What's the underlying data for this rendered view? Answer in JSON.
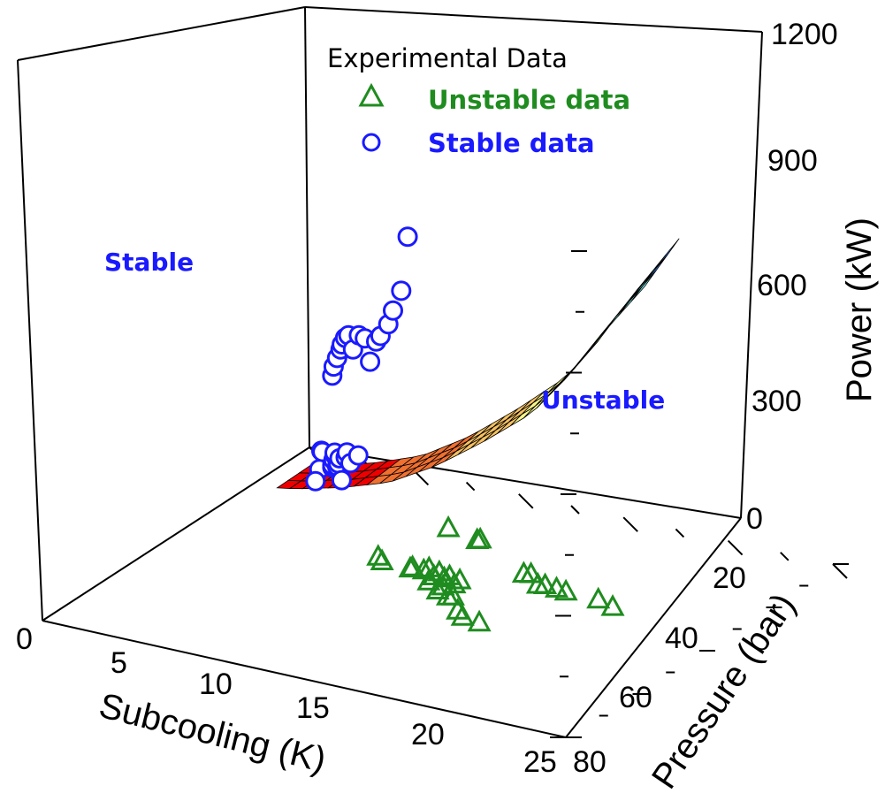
{
  "chart_data": {
    "type": "scatter",
    "title": "",
    "axes": {
      "x": {
        "label": "Subcooling (K)",
        "range": [
          0,
          25
        ],
        "ticks": [
          "0",
          "5",
          "10",
          "15",
          "20",
          "25"
        ]
      },
      "y": {
        "label": "Pressure (bar)",
        "range": [
          0,
          80
        ],
        "ticks": [
          "20",
          "40",
          "60",
          "80"
        ]
      },
      "z": {
        "label": "Power (kW)",
        "range": [
          0,
          1200
        ],
        "ticks": [
          "0",
          "300",
          "600",
          "900",
          "1200"
        ]
      }
    },
    "legend": {
      "title": "Experimental Data",
      "placement": "top-right",
      "entries": [
        {
          "label": "Unstable data",
          "marker": "triangle",
          "color": "#1f8c1f"
        },
        {
          "label": "Stable data",
          "marker": "circle",
          "color": "#1a1aff"
        }
      ]
    },
    "region_labels": {
      "stable": "Stable",
      "unstable": "Unstable"
    },
    "surface": {
      "description_type": "stability boundary surface",
      "colormap": [
        "#ee0000",
        "#f07030",
        "#f5c060",
        "#f7f58a",
        "#8ae86a",
        "#7ff0f0",
        "#3a7fee",
        "#000000"
      ],
      "subcooling": [
        0,
        25
      ],
      "power_profile": [
        {
          "subcooling": 0,
          "power": 0
        },
        {
          "subcooling": 3,
          "power": 60
        },
        {
          "subcooling": 6,
          "power": 130
        },
        {
          "subcooling": 9,
          "power": 210
        },
        {
          "subcooling": 12,
          "power": 320
        },
        {
          "subcooling": 15,
          "power": 450
        },
        {
          "subcooling": 18,
          "power": 590
        },
        {
          "subcooling": 20,
          "power": 720
        },
        {
          "subcooling": 22,
          "power": 870
        },
        {
          "subcooling": 25,
          "power": 1080
        }
      ]
    },
    "series": [
      {
        "name": "Stable data",
        "marker": "circle",
        "color": "#1a1aff",
        "points": [
          {
            "x": 1.5,
            "y": 74,
            "z": 40
          },
          {
            "x": 1.8,
            "y": 72,
            "z": 55
          },
          {
            "x": 2.0,
            "y": 71,
            "z": 60
          },
          {
            "x": 2.2,
            "y": 69,
            "z": 30
          },
          {
            "x": 2.5,
            "y": 66,
            "z": 20
          },
          {
            "x": 4.5,
            "y": 58,
            "z": 120
          },
          {
            "x": 4.8,
            "y": 56,
            "z": 140
          },
          {
            "x": 5.0,
            "y": 55,
            "z": 160
          },
          {
            "x": 5.2,
            "y": 54,
            "z": 180
          },
          {
            "x": 5.5,
            "y": 52,
            "z": 200
          },
          {
            "x": 5.8,
            "y": 51,
            "z": 175
          },
          {
            "x": 6.0,
            "y": 50,
            "z": 190
          },
          {
            "x": 6.2,
            "y": 49,
            "z": 210
          },
          {
            "x": 6.5,
            "y": 48,
            "z": 165
          },
          {
            "x": 6.8,
            "y": 47,
            "z": 230
          },
          {
            "x": 7.0,
            "y": 46,
            "z": 250
          },
          {
            "x": 7.5,
            "y": 44,
            "z": 240
          },
          {
            "x": 8.0,
            "y": 43,
            "z": 270
          },
          {
            "x": 4.0,
            "y": 60,
            "z": 330
          },
          {
            "x": 4.2,
            "y": 59,
            "z": 360
          },
          {
            "x": 4.5,
            "y": 58,
            "z": 390
          },
          {
            "x": 4.8,
            "y": 57,
            "z": 420
          },
          {
            "x": 5.0,
            "y": 56,
            "z": 440
          },
          {
            "x": 5.3,
            "y": 55,
            "z": 465
          },
          {
            "x": 5.6,
            "y": 54,
            "z": 480
          },
          {
            "x": 6.0,
            "y": 53,
            "z": 455
          },
          {
            "x": 6.4,
            "y": 52,
            "z": 500
          },
          {
            "x": 7.0,
            "y": 50,
            "z": 510
          },
          {
            "x": 7.6,
            "y": 48,
            "z": 470
          },
          {
            "x": 8.0,
            "y": 47,
            "z": 530
          },
          {
            "x": 8.5,
            "y": 45,
            "z": 560
          },
          {
            "x": 9.0,
            "y": 44,
            "z": 600
          },
          {
            "x": 9.5,
            "y": 42,
            "z": 650
          },
          {
            "x": 10.0,
            "y": 41,
            "z": 710
          },
          {
            "x": 10.5,
            "y": 39,
            "z": 860
          }
        ]
      },
      {
        "name": "Unstable data",
        "marker": "triangle",
        "color": "#1f8c1f",
        "points": [
          {
            "x": 9.5,
            "y": 62,
            "z": 5
          },
          {
            "x": 11.5,
            "y": 58,
            "z": 20
          },
          {
            "x": 11.8,
            "y": 57,
            "z": 30
          },
          {
            "x": 9.0,
            "y": 44,
            "z": 25
          },
          {
            "x": 9.5,
            "y": 42,
            "z": 30
          },
          {
            "x": 10.8,
            "y": 43,
            "z": 25
          },
          {
            "x": 11.0,
            "y": 41,
            "z": 35
          },
          {
            "x": 11.8,
            "y": 40,
            "z": 45
          },
          {
            "x": 12.2,
            "y": 39,
            "z": 60
          },
          {
            "x": 12.6,
            "y": 38,
            "z": 50
          },
          {
            "x": 13.0,
            "y": 37,
            "z": 70
          },
          {
            "x": 13.4,
            "y": 36,
            "z": 65
          },
          {
            "x": 13.8,
            "y": 35,
            "z": 80
          },
          {
            "x": 14.2,
            "y": 34,
            "z": 70
          },
          {
            "x": 14.6,
            "y": 33,
            "z": 90
          },
          {
            "x": 14.2,
            "y": 26,
            "z": 120
          },
          {
            "x": 14.8,
            "y": 25,
            "z": 110
          },
          {
            "x": 15.2,
            "y": 24,
            "z": 130
          },
          {
            "x": 15.6,
            "y": 23,
            "z": 115
          },
          {
            "x": 16.0,
            "y": 22,
            "z": 125
          },
          {
            "x": 16.4,
            "y": 21,
            "z": 100
          },
          {
            "x": 16.8,
            "y": 20,
            "z": 95
          },
          {
            "x": 17.6,
            "y": 20,
            "z": 90
          },
          {
            "x": 15.0,
            "y": 50,
            "z": 20
          },
          {
            "x": 15.5,
            "y": 49,
            "z": 30
          },
          {
            "x": 16.0,
            "y": 48,
            "z": 15
          },
          {
            "x": 16.5,
            "y": 47,
            "z": 25
          },
          {
            "x": 17.2,
            "y": 46,
            "z": 30
          },
          {
            "x": 17.8,
            "y": 45,
            "z": 35
          },
          {
            "x": 19.5,
            "y": 44,
            "z": 40
          },
          {
            "x": 20.2,
            "y": 44,
            "z": 30
          }
        ]
      }
    ]
  }
}
